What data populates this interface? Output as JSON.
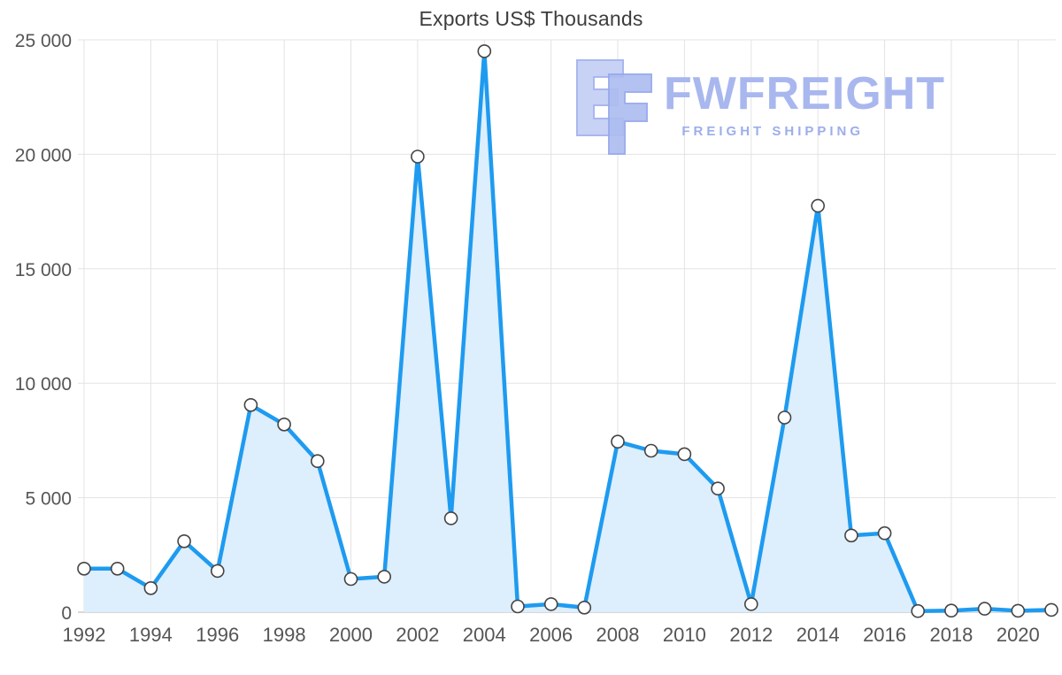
{
  "page": {
    "title": "Exports US$ Thousands"
  },
  "logo": {
    "name": "FWFREIGHT",
    "tagline": "FREIGHT SHIPPING",
    "color_main": "#a9b7ef",
    "color_sub": "#9caeeb",
    "icon_fill_light": "#c7d2f5",
    "icon_fill_dark": "#aebdf0"
  },
  "chart_data": {
    "type": "area",
    "title": "Exports US$ Thousands",
    "xlabel": "",
    "ylabel": "",
    "x": [
      1992,
      1993,
      1994,
      1995,
      1996,
      1997,
      1998,
      1999,
      2000,
      2001,
      2002,
      2003,
      2004,
      2005,
      2006,
      2007,
      2008,
      2009,
      2010,
      2011,
      2012,
      2013,
      2014,
      2015,
      2016,
      2017,
      2018,
      2019,
      2020,
      2021
    ],
    "values": [
      1900,
      1900,
      1050,
      3100,
      1800,
      9050,
      8200,
      6600,
      1450,
      1550,
      19900,
      4100,
      24500,
      250,
      350,
      200,
      7450,
      7050,
      6900,
      5400,
      350,
      8500,
      17750,
      3350,
      3450,
      50,
      70,
      150,
      60,
      100
    ],
    "xlim": [
      1992,
      2021
    ],
    "ylim": [
      0,
      25000
    ],
    "xticks": [
      1992,
      1994,
      1996,
      1998,
      2000,
      2002,
      2004,
      2006,
      2008,
      2010,
      2012,
      2014,
      2016,
      2018,
      2020
    ],
    "yticks": [
      0,
      5000,
      10000,
      15000,
      20000,
      25000
    ],
    "ytick_labels": [
      "0",
      "5 000",
      "10 000",
      "15 000",
      "20 000",
      "25 000"
    ],
    "grid": true,
    "legend_position": "none",
    "colors": {
      "line": "#1e9bf0",
      "area_fill": "#ddeefc",
      "marker_fill": "#ffffff",
      "marker_stroke": "#444444",
      "grid": "#e3e3e3",
      "axis": "#cccccc",
      "tick_label": "#555555"
    }
  }
}
